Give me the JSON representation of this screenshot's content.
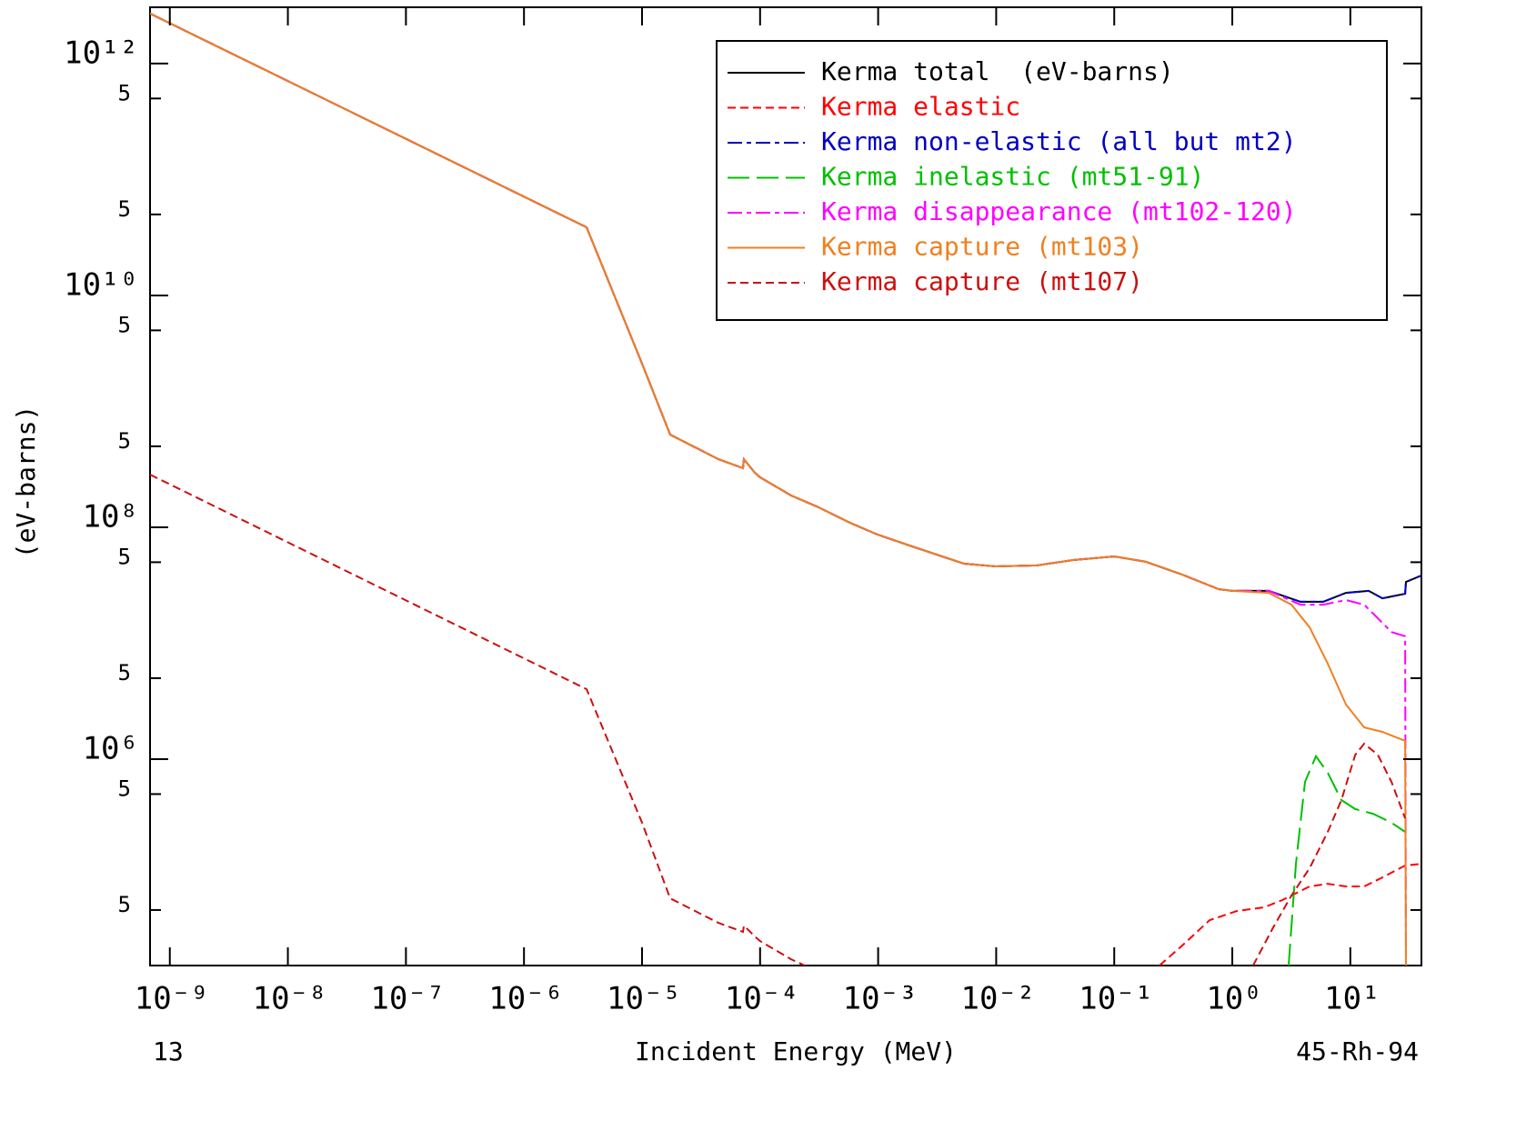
{
  "chart_data": {
    "type": "line",
    "x_label": "Incident Energy (MeV)",
    "y_label": "(eV-barns)",
    "left_note": "13",
    "right_note": "45-Rh-94",
    "x_log": true,
    "y_log": true,
    "legend": "upper right",
    "xlim": [
      6.8e-10,
      40
    ],
    "ylim": [
      16600.0,
      3060000000000.0
    ],
    "xticks": [
      {
        "value": 1e-09,
        "label": "10⁻⁹"
      },
      {
        "value": 1e-08,
        "label": "10⁻⁸"
      },
      {
        "value": 1e-07,
        "label": "10⁻⁷"
      },
      {
        "value": 1e-06,
        "label": "10⁻⁶"
      },
      {
        "value": 1e-05,
        "label": "10⁻⁵"
      },
      {
        "value": 0.0001,
        "label": "10⁻⁴"
      },
      {
        "value": 0.001,
        "label": "10⁻³"
      },
      {
        "value": 0.01,
        "label": "10⁻²"
      },
      {
        "value": 0.1,
        "label": "10⁻¹"
      },
      {
        "value": 1,
        "label": "10⁰"
      },
      {
        "value": 10,
        "label": "10¹"
      }
    ],
    "yticks": [
      {
        "value": 1000000000000.0,
        "label": "10¹²"
      },
      {
        "value": 500000000000.0,
        "label": "5"
      },
      {
        "value": 50000000000.0,
        "label": "5"
      },
      {
        "value": 10000000000.0,
        "label": "10¹⁰"
      },
      {
        "value": 5000000000.0,
        "label": "5"
      },
      {
        "value": 500000000.0,
        "label": "5"
      },
      {
        "value": 100000000.0,
        "label": "10⁸"
      },
      {
        "value": 50000000.0,
        "label": "5"
      },
      {
        "value": 5000000.0,
        "label": "5"
      },
      {
        "value": 1000000.0,
        "label": "10⁶"
      },
      {
        "value": 500000.0,
        "label": "5"
      },
      {
        "value": 50000.0,
        "label": "5"
      }
    ],
    "series": [
      {
        "name": "Kerma total  (eV-barns)",
        "color": "#000000",
        "line_style": "solid",
        "x": [
          6.8e-10,
          3.39e-06,
          1e-05,
          1.73e-05,
          4.44e-05,
          7.16e-05,
          7.29e-05,
          9.02e-05,
          0.0001,
          0.000183,
          0.000312,
          0.000581,
          0.00099,
          0.00184,
          0.00313,
          0.00534,
          0.00993,
          0.0221,
          0.0449,
          0.1,
          0.185,
          0.377,
          0.766,
          1,
          2.03,
          3.78,
          5.89,
          9.18,
          14.3,
          18.7,
          29.1,
          29.6,
          40
        ],
        "values": [
          2700000000000.0,
          38700000000.0,
          2580000000.0,
          631000000.0,
          387000000.0,
          324000000.0,
          387000000.0,
          296000000.0,
          270000000.0,
          188000000.0,
          149000000.0,
          109000000.0,
          86500000.0,
          69700000.0,
          58200000.0,
          48600000.0,
          46000000.0,
          46900000.0,
          52200000.0,
          56100000.0,
          50400000.0,
          39100000.0,
          29300000.0,
          28300000.0,
          28300000.0,
          22800000.0,
          22800000.0,
          27200000.0,
          28300000.0,
          24400000.0,
          26700000.0,
          33800000.0,
          38400000.0
        ]
      },
      {
        "name": "Kerma elastic",
        "color": "#ff0000",
        "line_style": "dashed",
        "x": [
          0.242,
          0.377,
          0.642,
          1.09,
          1.86,
          2.65,
          4.52,
          6.44,
          9.18,
          13.1,
          18.7,
          29.1,
          40
        ],
        "values": [
          16600.0,
          24700.0,
          40900.0,
          49000.0,
          52700.0,
          60900.0,
          79800.0,
          84100.0,
          79800.0,
          79800.0,
          95500.0,
          121000.0,
          125000.0
        ]
      },
      {
        "name": "Kerma non-elastic (all but mt2)",
        "color": "#0000c0",
        "line_style": "dash-dot",
        "x": [
          6.8e-10,
          3.39e-06,
          1e-05,
          1.73e-05,
          4.44e-05,
          7.16e-05,
          7.29e-05,
          9.02e-05,
          0.0001,
          0.000183,
          0.000312,
          0.000581,
          0.00099,
          0.00184,
          0.00313,
          0.00534,
          0.00993,
          0.0221,
          0.0449,
          0.1,
          0.185,
          0.377,
          0.766,
          1,
          2.03,
          3.78,
          5.89,
          9.18,
          14.3,
          18.7,
          29.1,
          29.6,
          40
        ],
        "values": [
          2700000000000.0,
          38700000000.0,
          2580000000.0,
          631000000.0,
          387000000.0,
          324000000.0,
          387000000.0,
          296000000.0,
          270000000.0,
          188000000.0,
          149000000.0,
          109000000.0,
          86500000.0,
          69700000.0,
          58200000.0,
          48600000.0,
          46000000.0,
          46900000.0,
          52200000.0,
          56100000.0,
          50400000.0,
          39100000.0,
          29300000.0,
          28300000.0,
          28300000.0,
          22800000.0,
          22800000.0,
          27200000.0,
          28300000.0,
          24400000.0,
          26700000.0,
          33800000.0,
          38400000.0
        ]
      },
      {
        "name": "Kerma inelastic (mt51-91)",
        "color": "#00c000",
        "line_style": "long-dash",
        "x": [
          3.0,
          3.46,
          4.13,
          5.11,
          6.44,
          8.4,
          11.0,
          15.6,
          22.3,
          29.1
        ],
        "values": [
          16600.0,
          125000.0,
          637000.0,
          1060000.0,
          763000.0,
          444000.0,
          371000.0,
          338000.0,
          283000.0,
          236000.0
        ]
      },
      {
        "name": "Kerma disappearance (mt102-120)",
        "color": "#ff00ff",
        "line_style": "dash-dot",
        "x": [
          6.8e-10,
          3.39e-06,
          1e-05,
          1.73e-05,
          4.44e-05,
          7.16e-05,
          7.29e-05,
          9.02e-05,
          0.0001,
          0.000183,
          0.000312,
          0.000581,
          0.00099,
          0.00184,
          0.00313,
          0.00534,
          0.00993,
          0.0221,
          0.0449,
          0.1,
          0.185,
          0.377,
          0.766,
          1,
          2.03,
          3.78,
          5.89,
          9.18,
          13.1,
          17.1,
          22.3,
          29.1,
          29.6
        ],
        "values": [
          2700000000000.0,
          38700000000.0,
          2580000000.0,
          631000000.0,
          387000000.0,
          324000000.0,
          387000000.0,
          296000000.0,
          270000000.0,
          188000000.0,
          149000000.0,
          109000000.0,
          86500000.0,
          69700000.0,
          58200000.0,
          48600000.0,
          46000000.0,
          46900000.0,
          52200000.0,
          56100000.0,
          50400000.0,
          39100000.0,
          29300000.0,
          28300000.0,
          28300000.0,
          21500000.0,
          21500000.0,
          23600000.0,
          21500000.0,
          16400000.0,
          12500000.0,
          11500000.0,
          16600.0
        ]
      },
      {
        "name": "Kerma capture (mt103)",
        "color": "#f08020",
        "line_style": "solid",
        "x": [
          6.8e-10,
          3.39e-06,
          1e-05,
          1.73e-05,
          4.44e-05,
          7.16e-05,
          7.29e-05,
          9.02e-05,
          0.0001,
          0.000183,
          0.000312,
          0.000581,
          0.00099,
          0.00184,
          0.00313,
          0.00534,
          0.00993,
          0.0221,
          0.0449,
          0.1,
          0.185,
          0.377,
          0.766,
          1,
          2.03,
          3.17,
          4.52,
          6.44,
          9.18,
          13.1,
          18.7,
          29.1,
          29.6
        ],
        "values": [
          2700000000000.0,
          38700000000.0,
          2580000000.0,
          631000000.0,
          387000000.0,
          324000000.0,
          387000000.0,
          296000000.0,
          270000000.0,
          188000000.0,
          149000000.0,
          109000000.0,
          86500000.0,
          69700000.0,
          58200000.0,
          48600000.0,
          46000000.0,
          46900000.0,
          52200000.0,
          56100000.0,
          50400000.0,
          39100000.0,
          29300000.0,
          28300000.0,
          27200000.0,
          21500000.0,
          13700000.0,
          6670000.0,
          2960000.0,
          1880000.0,
          1720000.0,
          1440000.0,
          16600.0
        ]
      },
      {
        "name": "Kerma capture (mt107)",
        "color": "#cc1010",
        "line_style": "dashed",
        "x": [
          6.8e-10,
          3.39e-06,
          1e-05,
          1.73e-05,
          4.44e-05,
          7.16e-05,
          7.29e-05,
          9.02e-05,
          0.0001,
          0.000183,
          0.000239,
          0.01,
          1.5,
          2.22,
          3.17,
          4.52,
          6.44,
          8.4,
          11.0,
          13.1,
          17.1,
          22.3,
          29.1
        ],
        "values": [
          285000000.0,
          4020000.0,
          283000.0,
          63100.0,
          38700.0,
          32400.0,
          36700.0,
          29600.0,
          27000.0,
          18800.0,
          16600.0,
          null,
          16600.0,
          35400.0,
          66700.0,
          115000.0,
          236000.0,
          444000.0,
          1090000.0,
          1360000.0,
          1090000.0,
          637000.0,
          309000.0
        ]
      }
    ]
  }
}
